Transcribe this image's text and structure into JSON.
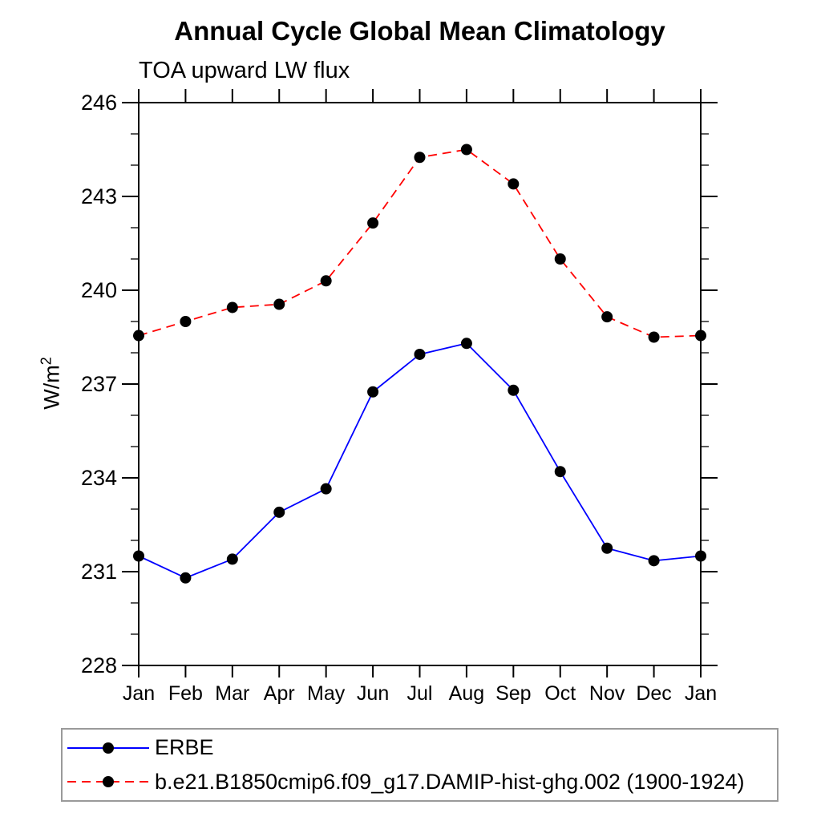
{
  "chart_data": {
    "type": "line",
    "title": "Annual Cycle Global Mean Climatology",
    "subtitle": "TOA upward LW flux",
    "ylabel": "W/m²",
    "ylabel_base": "W/m",
    "ylabel_sup": "2",
    "categories": [
      "Jan",
      "Feb",
      "Mar",
      "Apr",
      "May",
      "Jun",
      "Jul",
      "Aug",
      "Sep",
      "Oct",
      "Nov",
      "Dec",
      "Jan"
    ],
    "ylim": [
      228,
      246
    ],
    "yticks": [
      228,
      231,
      234,
      237,
      240,
      243,
      246
    ],
    "ytick_step": 3,
    "ytick_minor_step": 1,
    "grid": false,
    "legend_position": "bottom-left-box",
    "frame_color": "#000000",
    "marker": "filled-circle",
    "series": [
      {
        "id": "erbe",
        "name": "ERBE",
        "color": "#0000ff",
        "line_style": "solid",
        "marker_color": "#000000",
        "values": [
          231.5,
          230.8,
          231.4,
          232.9,
          233.65,
          236.75,
          237.95,
          238.3,
          236.8,
          234.2,
          231.75,
          231.35,
          231.5
        ]
      },
      {
        "id": "damip-hist-ghg",
        "name": "b.e21.B1850cmip6.f09_g17.DAMIP-hist-ghg.002 (1900-1924)",
        "color": "#ff0000",
        "line_style": "dashed",
        "marker_color": "#000000",
        "values": [
          238.55,
          239.0,
          239.45,
          239.55,
          240.3,
          242.15,
          244.25,
          244.5,
          243.4,
          241.0,
          239.15,
          238.5,
          238.55
        ]
      }
    ]
  }
}
